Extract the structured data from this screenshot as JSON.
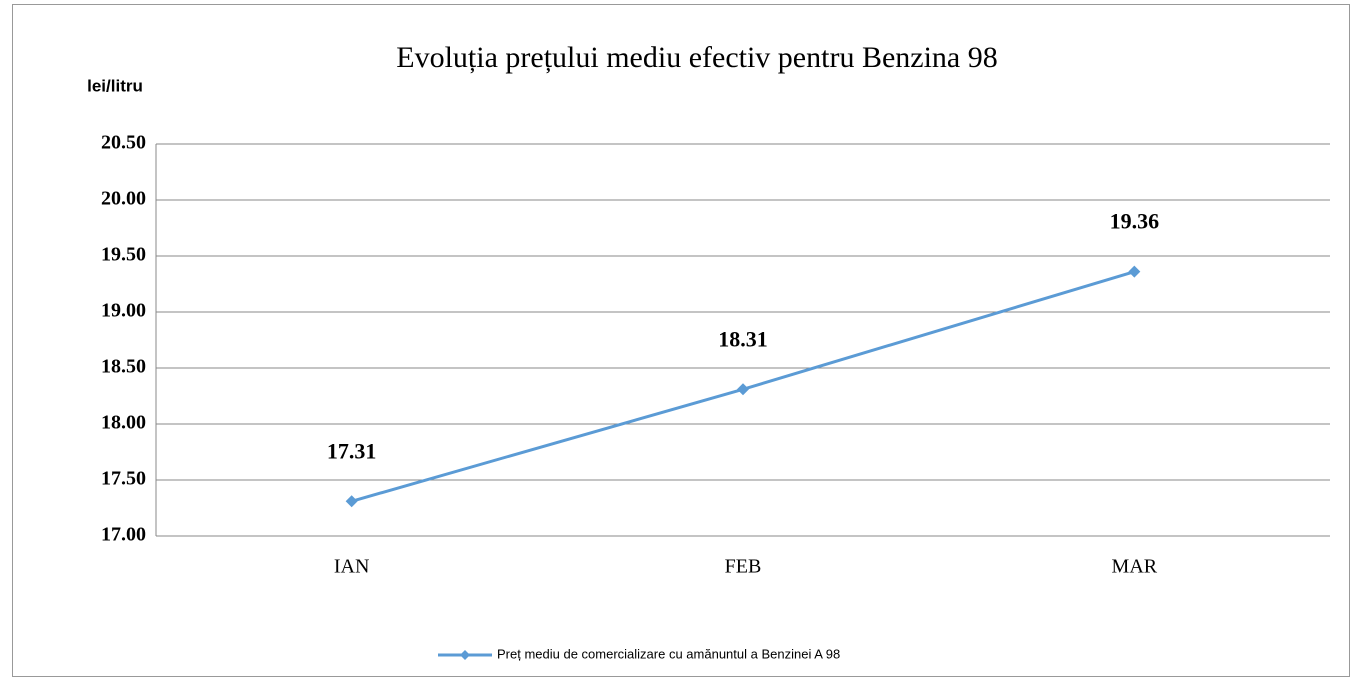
{
  "chart_data": {
    "type": "line",
    "title": "Evoluția prețului mediu efectiv pentru Benzina 98",
    "y_label": "lei/litru",
    "categories": [
      "IAN",
      "FEB",
      "MAR"
    ],
    "series": [
      {
        "name": "Preț mediu de comercializare cu amănuntul a Benzinei A 98",
        "color": "#5b9bd5",
        "values": [
          17.31,
          18.31,
          19.36
        ]
      }
    ],
    "ylim": [
      17,
      20.5
    ],
    "yticks": [
      {
        "value": 17,
        "label": "17.00"
      },
      {
        "value": 17.5,
        "label": "17.50"
      },
      {
        "value": 18,
        "label": "18.00"
      },
      {
        "value": 18.5,
        "label": "18.50"
      },
      {
        "value": 19,
        "label": "19.00"
      },
      {
        "value": 19.5,
        "label": "19.50"
      },
      {
        "value": 20,
        "label": "20.00"
      },
      {
        "value": 20.5,
        "label": "20.50"
      }
    ],
    "grid": true,
    "legend": "bottom"
  }
}
